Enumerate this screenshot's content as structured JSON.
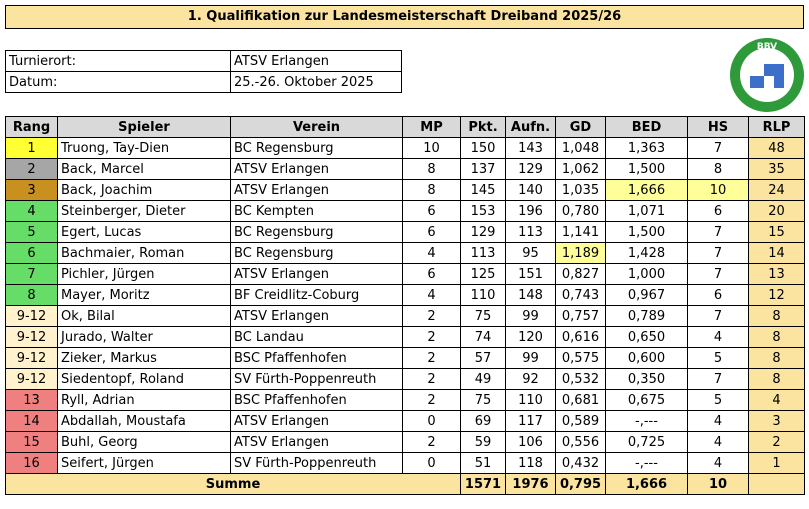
{
  "header": {
    "title": "1. Qualifikation zur Landesmeisterschaft Dreiband 2025/26"
  },
  "info": [
    {
      "label": "Turnierort:",
      "value": "ATSV Erlangen"
    },
    {
      "label": "Datum:",
      "value": "25.-26. Oktober 2025"
    }
  ],
  "logo": {
    "text": "BBV"
  },
  "table": {
    "header": [
      "Rang",
      "Spieler",
      "Verein",
      "MP",
      "Pkt.",
      "Aufn.",
      "GD",
      "BED",
      "HS",
      "RLP"
    ],
    "rows": [
      [
        "1",
        "Truong, Tay-Dien",
        "BC Regensburg",
        "10",
        "150",
        "143",
        "1,048",
        "1,363",
        "7",
        "48"
      ],
      [
        "2",
        "Back, Marcel",
        "ATSV Erlangen",
        "8",
        "137",
        "129",
        "1,062",
        "1,500",
        "8",
        "35"
      ],
      [
        "3",
        "Back, Joachim",
        "ATSV Erlangen",
        "8",
        "145",
        "140",
        "1,035",
        "1,666",
        "10",
        "24"
      ],
      [
        "4",
        "Steinberger, Dieter",
        "BC Kempten",
        "6",
        "153",
        "196",
        "0,780",
        "1,071",
        "6",
        "20"
      ],
      [
        "5",
        "Egert, Lucas",
        "BC Regensburg",
        "6",
        "129",
        "113",
        "1,141",
        "1,500",
        "7",
        "15"
      ],
      [
        "6",
        "Bachmaier, Roman",
        "BC Regensburg",
        "4",
        "113",
        "95",
        "1,189",
        "1,428",
        "7",
        "14"
      ],
      [
        "7",
        "Pichler, Jürgen",
        "ATSV Erlangen",
        "6",
        "125",
        "151",
        "0,827",
        "1,000",
        "7",
        "13"
      ],
      [
        "8",
        "Mayer, Moritz",
        "BF Creidlitz-Coburg",
        "4",
        "110",
        "148",
        "0,743",
        "0,967",
        "6",
        "12"
      ],
      [
        "9-12",
        "Ok, Bilal",
        "ATSV Erlangen",
        "2",
        "75",
        "99",
        "0,757",
        "0,789",
        "7",
        "8"
      ],
      [
        "9-12",
        "Jurado, Walter",
        "BC Landau",
        "2",
        "74",
        "120",
        "0,616",
        "0,650",
        "4",
        "8"
      ],
      [
        "9-12",
        "Zieker, Markus",
        "BSC Pfaffenhofen",
        "2",
        "57",
        "99",
        "0,575",
        "0,600",
        "5",
        "8"
      ],
      [
        "9-12",
        "Siedentopf, Roland",
        "SV Fürth-Poppenreuth",
        "2",
        "49",
        "92",
        "0,532",
        "0,350",
        "7",
        "8"
      ],
      [
        "13",
        "Ryll, Adrian",
        "BSC Pfaffenhofen",
        "2",
        "75",
        "110",
        "0,681",
        "0,675",
        "5",
        "4"
      ],
      [
        "14",
        "Abdallah, Moustafa",
        "ATSV Erlangen",
        "0",
        "69",
        "117",
        "0,589",
        "-,---",
        "4",
        "3"
      ],
      [
        "15",
        "Buhl, Georg",
        "ATSV Erlangen",
        "2",
        "59",
        "106",
        "0,556",
        "0,725",
        "4",
        "2"
      ],
      [
        "16",
        "Seifert, Jürgen",
        "SV Fürth-Poppenreuth",
        "0",
        "51",
        "118",
        "0,432",
        "-,---",
        "4",
        "1"
      ]
    ],
    "total": {
      "label": "Summe",
      "values": [
        "1571",
        "1976",
        "0,795",
        "1,666",
        "10"
      ]
    }
  }
}
